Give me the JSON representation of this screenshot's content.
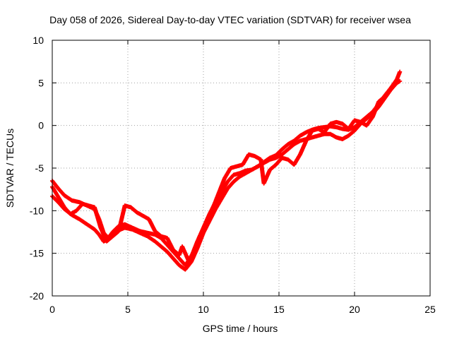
{
  "chart_data": {
    "type": "scatter",
    "title": "Day 058 of 2026, Sidereal Day-to-day VTEC variation (SDTVAR) for receiver wsea",
    "xlabel": "GPS time / hours",
    "ylabel": "SDTVAR / TECUs",
    "xlim": [
      0,
      25
    ],
    "ylim": [
      -20,
      10
    ],
    "xticks": [
      "0",
      "5",
      "10",
      "15",
      "20",
      "25"
    ],
    "yticks": [
      "10",
      "5",
      "0",
      "-5",
      "-10",
      "-15",
      "-20"
    ],
    "grid": true,
    "marker": "plus",
    "series_color": "#ff0000",
    "series": [
      {
        "values": [
          [
            0.0,
            -6.5
          ],
          [
            0.4,
            -7.4
          ],
          [
            0.8,
            -8.2
          ],
          [
            1.3,
            -8.8
          ],
          [
            1.8,
            -9.0
          ],
          [
            2.3,
            -9.4
          ],
          [
            2.8,
            -9.8
          ],
          [
            3.1,
            -11.0
          ],
          [
            3.4,
            -12.6
          ],
          [
            3.7,
            -13.2
          ],
          [
            4.0,
            -12.5
          ],
          [
            4.4,
            -11.8
          ],
          [
            4.8,
            -11.6
          ],
          [
            5.3,
            -12.0
          ],
          [
            5.8,
            -12.4
          ],
          [
            6.3,
            -12.6
          ],
          [
            6.8,
            -12.8
          ],
          [
            7.2,
            -13.2
          ],
          [
            7.6,
            -14.0
          ],
          [
            8.0,
            -14.8
          ],
          [
            8.4,
            -15.6
          ],
          [
            8.8,
            -16.4
          ],
          [
            9.2,
            -15.4
          ],
          [
            9.6,
            -13.6
          ],
          [
            10.0,
            -12.0
          ],
          [
            10.4,
            -10.4
          ],
          [
            10.8,
            -9.0
          ],
          [
            11.2,
            -7.8
          ],
          [
            11.6,
            -6.6
          ],
          [
            12.0,
            -5.8
          ],
          [
            12.4,
            -5.6
          ],
          [
            12.8,
            -5.3
          ],
          [
            13.2,
            -5.2
          ],
          [
            13.6,
            -4.8
          ],
          [
            14.0,
            -4.3
          ],
          [
            14.4,
            -3.8
          ],
          [
            14.8,
            -3.5
          ],
          [
            15.2,
            -2.8
          ],
          [
            15.6,
            -2.2
          ],
          [
            16.0,
            -1.8
          ],
          [
            16.4,
            -1.2
          ],
          [
            16.8,
            -0.8
          ],
          [
            17.2,
            -0.5
          ],
          [
            17.6,
            -0.3
          ],
          [
            18.0,
            -0.2
          ],
          [
            18.4,
            -0.1
          ],
          [
            18.8,
            -0.2
          ],
          [
            19.2,
            -0.4
          ],
          [
            19.6,
            -0.5
          ],
          [
            20.0,
            -0.2
          ],
          [
            20.4,
            0.4
          ],
          [
            20.8,
            1.0
          ],
          [
            21.2,
            1.6
          ],
          [
            21.6,
            2.5
          ],
          [
            22.0,
            3.5
          ],
          [
            22.4,
            4.4
          ],
          [
            22.8,
            5.4
          ],
          [
            23.0,
            6.3
          ]
        ]
      },
      {
        "values": [
          [
            0.0,
            -8.3
          ],
          [
            0.4,
            -9.0
          ],
          [
            0.8,
            -9.8
          ],
          [
            1.3,
            -10.5
          ],
          [
            1.8,
            -11.0
          ],
          [
            2.3,
            -11.6
          ],
          [
            2.8,
            -12.2
          ],
          [
            3.1,
            -12.8
          ],
          [
            3.4,
            -13.6
          ],
          [
            3.7,
            -13.4
          ],
          [
            4.0,
            -12.8
          ],
          [
            4.4,
            -12.3
          ],
          [
            4.8,
            -12.0
          ],
          [
            5.3,
            -12.2
          ],
          [
            5.8,
            -12.6
          ],
          [
            6.3,
            -13.0
          ],
          [
            6.8,
            -13.6
          ],
          [
            7.2,
            -14.2
          ],
          [
            7.6,
            -14.8
          ],
          [
            8.0,
            -15.6
          ],
          [
            8.4,
            -16.4
          ],
          [
            8.8,
            -16.9
          ],
          [
            9.2,
            -16.0
          ],
          [
            9.6,
            -14.4
          ],
          [
            10.0,
            -12.6
          ],
          [
            10.4,
            -11.2
          ],
          [
            10.8,
            -9.8
          ],
          [
            11.2,
            -8.6
          ],
          [
            11.6,
            -7.4
          ],
          [
            12.0,
            -6.6
          ],
          [
            12.4,
            -6.0
          ],
          [
            12.8,
            -5.6
          ],
          [
            13.2,
            -5.2
          ],
          [
            13.6,
            -4.8
          ],
          [
            14.0,
            -4.4
          ],
          [
            14.4,
            -4.0
          ],
          [
            14.8,
            -3.8
          ],
          [
            15.2,
            -3.4
          ],
          [
            15.6,
            -2.8
          ],
          [
            16.0,
            -2.2
          ],
          [
            16.4,
            -1.8
          ],
          [
            16.8,
            -1.6
          ],
          [
            17.2,
            -1.4
          ],
          [
            17.6,
            -1.2
          ],
          [
            18.0,
            -1.0
          ],
          [
            18.4,
            -1.0
          ],
          [
            18.8,
            -1.4
          ],
          [
            19.2,
            -1.6
          ],
          [
            19.6,
            -1.2
          ],
          [
            20.0,
            -0.6
          ],
          [
            20.4,
            0.2
          ],
          [
            20.8,
            0.8
          ],
          [
            21.2,
            1.4
          ],
          [
            21.6,
            2.2
          ],
          [
            22.0,
            3.2
          ],
          [
            22.4,
            4.2
          ],
          [
            22.8,
            5.0
          ],
          [
            23.0,
            5.2
          ]
        ]
      },
      {
        "values": [
          [
            0.0,
            -7.2
          ],
          [
            0.4,
            -8.4
          ],
          [
            0.8,
            -9.6
          ],
          [
            1.2,
            -10.4
          ],
          [
            1.6,
            -10.0
          ],
          [
            2.0,
            -9.2
          ],
          [
            2.4,
            -9.4
          ],
          [
            2.8,
            -9.6
          ],
          [
            3.2,
            -12.0
          ],
          [
            3.6,
            -13.6
          ],
          [
            4.0,
            -13.0
          ],
          [
            4.4,
            -12.4
          ],
          [
            4.8,
            -9.4
          ],
          [
            5.2,
            -9.6
          ],
          [
            5.6,
            -10.2
          ],
          [
            6.0,
            -10.6
          ],
          [
            6.4,
            -11.0
          ],
          [
            6.8,
            -12.4
          ],
          [
            7.2,
            -13.0
          ],
          [
            7.6,
            -13.2
          ],
          [
            8.0,
            -14.6
          ],
          [
            8.4,
            -15.2
          ],
          [
            8.6,
            -14.2
          ],
          [
            9.0,
            -15.8
          ],
          [
            9.4,
            -14.8
          ],
          [
            9.8,
            -13.2
          ],
          [
            10.2,
            -11.4
          ],
          [
            10.6,
            -9.8
          ],
          [
            11.0,
            -8.0
          ],
          [
            11.4,
            -6.2
          ],
          [
            11.8,
            -5.0
          ],
          [
            12.2,
            -4.8
          ],
          [
            12.6,
            -4.6
          ],
          [
            13.0,
            -3.4
          ],
          [
            13.4,
            -3.6
          ],
          [
            13.8,
            -4.0
          ],
          [
            14.0,
            -6.8
          ],
          [
            14.4,
            -5.2
          ],
          [
            14.8,
            -4.6
          ],
          [
            15.2,
            -3.8
          ],
          [
            15.6,
            -4.0
          ],
          [
            16.0,
            -4.6
          ],
          [
            16.4,
            -3.4
          ],
          [
            16.8,
            -1.8
          ],
          [
            17.2,
            -0.6
          ],
          [
            17.6,
            -0.4
          ],
          [
            18.0,
            -0.8
          ],
          [
            18.4,
            0.2
          ],
          [
            18.8,
            0.4
          ],
          [
            19.2,
            0.2
          ],
          [
            19.6,
            -0.4
          ],
          [
            20.0,
            0.6
          ],
          [
            20.4,
            0.4
          ],
          [
            20.8,
            0.0
          ],
          [
            21.2,
            1.0
          ],
          [
            21.6,
            2.8
          ],
          [
            22.0,
            3.4
          ],
          [
            22.4,
            4.2
          ],
          [
            22.8,
            5.4
          ]
        ]
      }
    ]
  }
}
